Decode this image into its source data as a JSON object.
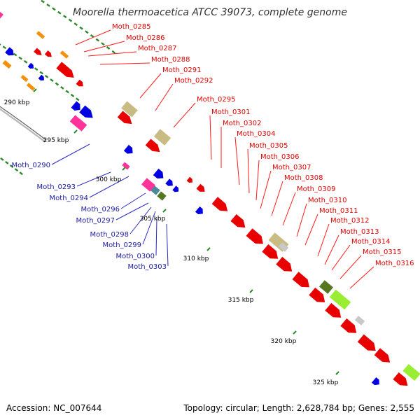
{
  "title": "Moorella thermoacetica ATCC 39073, complete genome",
  "accession": "Accession: NC_007644",
  "summary": "Topology: circular; Length: 2,628,784 bp; Genes: 2,555",
  "colors": {
    "forward": "#e80000",
    "reverse": "#0000e0",
    "backbone": "#888888",
    "gc_dots": "#2a8a2a",
    "orange": "#f5900a",
    "khaki": "#c8bc82",
    "magenta": "#ff3399",
    "teal": "#4a8a9a",
    "olive": "#557722",
    "lime": "#99ee33",
    "grey": "#c8c8c8"
  },
  "ticks": [
    "290 kbp",
    "295 kbp",
    "300 kbp",
    "305 kbp",
    "310 kbp",
    "315 kbp",
    "320 kbp",
    "325 kbp"
  ],
  "forward_labels": [
    "Moth_0285",
    "Moth_0286",
    "Moth_0287",
    "Moth_0288",
    "Moth_0291",
    "Moth_0292",
    "Moth_0295",
    "Moth_0301",
    "Moth_0302",
    "Moth_0304",
    "Moth_0305",
    "Moth_0306",
    "Moth_0307",
    "Moth_0308",
    "Moth_0309",
    "Moth_0310",
    "Moth_0311",
    "Moth_0312",
    "Moth_0313",
    "Moth_0314",
    "Moth_0315",
    "Moth_0316"
  ],
  "reverse_labels": [
    "Moth_0290",
    "Moth_0293",
    "Moth_0294",
    "Moth_0296",
    "Moth_0297",
    "Moth_0298",
    "Moth_0299",
    "Moth_0300",
    "Moth_0303"
  ]
}
